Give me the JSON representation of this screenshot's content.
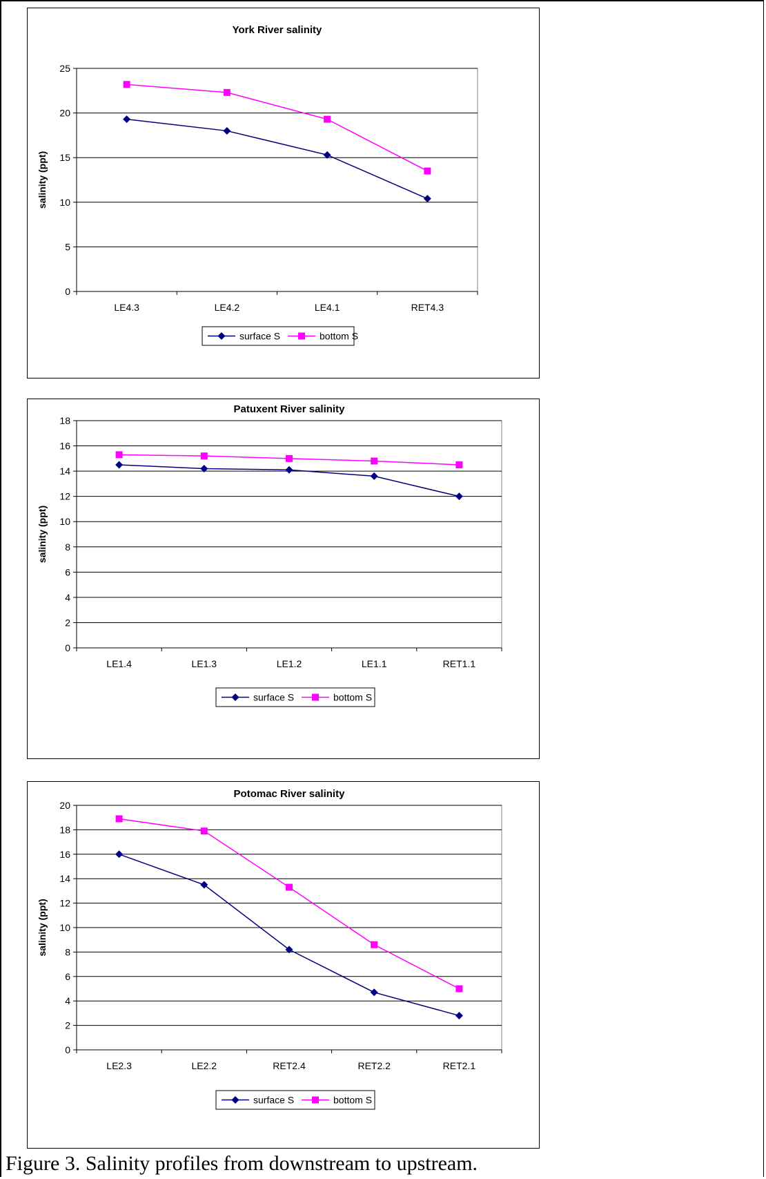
{
  "caption": "Figure 3.  Salinity profiles from downstream to upstream.",
  "series_colors": {
    "surface": "#000080",
    "bottom": "#ff00ff"
  },
  "chart_data": [
    {
      "type": "line",
      "title": "York River salinity",
      "xlabel": "",
      "ylabel": "salinity (ppt)",
      "categories": [
        "LE4.3",
        "LE4.2",
        "LE4.1",
        "RET4.3"
      ],
      "ylim": [
        0,
        25
      ],
      "yticks": [
        0,
        5,
        10,
        15,
        20,
        25
      ],
      "grid": true,
      "legend": "bottom",
      "series": [
        {
          "name": "surface S",
          "color": "#000080",
          "marker": "diamond",
          "values": [
            19.3,
            18.0,
            15.3,
            10.4
          ]
        },
        {
          "name": "bottom S",
          "color": "#ff00ff",
          "marker": "square",
          "values": [
            23.2,
            22.3,
            19.3,
            13.5
          ]
        }
      ]
    },
    {
      "type": "line",
      "title": "Patuxent River salinity",
      "xlabel": "",
      "ylabel": "salinity (ppt)",
      "categories": [
        "LE1.4",
        "LE1.3",
        "LE1.2",
        "LE1.1",
        "RET1.1"
      ],
      "ylim": [
        0,
        18
      ],
      "yticks": [
        0,
        2,
        4,
        6,
        8,
        10,
        12,
        14,
        16,
        18
      ],
      "grid": true,
      "legend": "bottom",
      "series": [
        {
          "name": "surface S",
          "color": "#000080",
          "marker": "diamond",
          "values": [
            14.5,
            14.2,
            14.1,
            13.6,
            12.0
          ]
        },
        {
          "name": "bottom S",
          "color": "#ff00ff",
          "marker": "square",
          "values": [
            15.3,
            15.2,
            15.0,
            14.8,
            14.5
          ]
        }
      ]
    },
    {
      "type": "line",
      "title": "Potomac River salinity",
      "xlabel": "",
      "ylabel": "salinity (ppt)",
      "categories": [
        "LE2.3",
        "LE2.2",
        "RET2.4",
        "RET2.2",
        "RET2.1"
      ],
      "ylim": [
        0,
        20
      ],
      "yticks": [
        0,
        2,
        4,
        6,
        8,
        10,
        12,
        14,
        16,
        18,
        20
      ],
      "grid": true,
      "legend": "bottom",
      "series": [
        {
          "name": "surface S",
          "color": "#000080",
          "marker": "diamond",
          "values": [
            16.0,
            13.5,
            8.2,
            4.7,
            2.8
          ]
        },
        {
          "name": "bottom S",
          "color": "#ff00ff",
          "marker": "square",
          "values": [
            18.9,
            17.9,
            13.3,
            8.6,
            5.0
          ]
        }
      ]
    }
  ]
}
